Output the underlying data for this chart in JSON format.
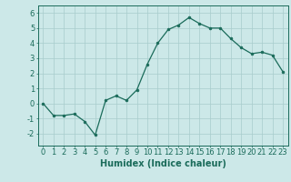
{
  "x": [
    0,
    1,
    2,
    3,
    4,
    5,
    6,
    7,
    8,
    9,
    10,
    11,
    12,
    13,
    14,
    15,
    16,
    17,
    18,
    19,
    20,
    21,
    22,
    23
  ],
  "y": [
    0.0,
    -0.8,
    -0.8,
    -0.7,
    -1.2,
    -2.1,
    0.2,
    0.5,
    0.2,
    0.9,
    2.6,
    4.0,
    4.9,
    5.2,
    5.7,
    5.3,
    5.0,
    5.0,
    4.3,
    3.7,
    3.3,
    3.4,
    3.2,
    2.1
  ],
  "line_color": "#1a6b5a",
  "marker_color": "#1a6b5a",
  "bg_color": "#cce8e8",
  "grid_color": "#a8cccc",
  "axis_color": "#1a6b5a",
  "xlabel": "Humidex (Indice chaleur)",
  "xlabel_fontsize": 7,
  "tick_fontsize": 6,
  "xlim": [
    -0.5,
    23.5
  ],
  "ylim": [
    -2.8,
    6.5
  ],
  "yticks": [
    -2,
    -1,
    0,
    1,
    2,
    3,
    4,
    5,
    6
  ],
  "xticks": [
    0,
    1,
    2,
    3,
    4,
    5,
    6,
    7,
    8,
    9,
    10,
    11,
    12,
    13,
    14,
    15,
    16,
    17,
    18,
    19,
    20,
    21,
    22,
    23
  ]
}
